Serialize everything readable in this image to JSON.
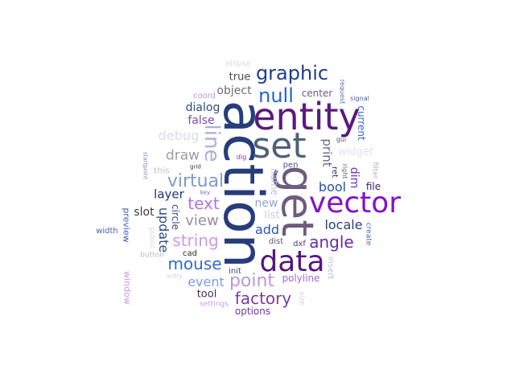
{
  "words": [
    {
      "text": "action",
      "color": "#263d7a"
    },
    {
      "text": "get",
      "color": "#6e5b7d"
    },
    {
      "text": "entity",
      "color": "#5a1a7e"
    },
    {
      "text": "vector",
      "color": "#8412c7"
    },
    {
      "text": "set",
      "color": "#4f6177"
    },
    {
      "text": "data",
      "color": "#56157f"
    },
    {
      "text": "graphic",
      "color": "#1f3c8f"
    },
    {
      "text": "null",
      "color": "#2463d6"
    },
    {
      "text": "line",
      "color": "#a7b1d4"
    },
    {
      "text": "point",
      "color": "#b89ad3"
    },
    {
      "text": "virtual",
      "color": "#7f9bc8"
    },
    {
      "text": "angle",
      "color": "#6a2aa6"
    },
    {
      "text": "factory",
      "color": "#7c3aa2"
    },
    {
      "text": "string",
      "color": "#c79be8"
    },
    {
      "text": "mouse",
      "color": "#2e6bd2"
    },
    {
      "text": "text",
      "color": "#b472e8"
    },
    {
      "text": "view",
      "color": "#9a8aa6"
    },
    {
      "text": "draw",
      "color": "#9c9ca8"
    },
    {
      "text": "debug",
      "color": "#dadde6"
    },
    {
      "text": "event",
      "color": "#7c9ce8"
    },
    {
      "text": "locale",
      "color": "#2a3f7a"
    },
    {
      "text": "bool",
      "color": "#2751a8"
    },
    {
      "text": "add",
      "color": "#2d58b6"
    },
    {
      "text": "print",
      "color": "#5c6a8e"
    },
    {
      "text": "dim",
      "color": "#7a2ec1"
    },
    {
      "text": "layer",
      "color": "#213566"
    },
    {
      "text": "slot",
      "color": "#3b3b4a"
    },
    {
      "text": "update",
      "color": "#2d4c86"
    },
    {
      "text": "dialog",
      "color": "#2f4b7a"
    },
    {
      "text": "false",
      "color": "#7d48ad"
    },
    {
      "text": "object",
      "color": "#6b6b7e"
    },
    {
      "text": "true",
      "color": "#4a4a52"
    },
    {
      "text": "center",
      "color": "#6b5b8a"
    },
    {
      "text": "new",
      "color": "#8fa6d6"
    },
    {
      "text": "list",
      "color": "#c8cde0"
    },
    {
      "text": "name",
      "color": "#b5bfe3"
    },
    {
      "text": "circle",
      "color": "#3c4a7a"
    },
    {
      "text": "file",
      "color": "#3a1c6b"
    },
    {
      "text": "widget",
      "color": "#e0e3f0"
    },
    {
      "text": "current",
      "color": "#3964c6"
    },
    {
      "text": "tool",
      "color": "#4b2a5e"
    },
    {
      "text": "options",
      "color": "#6b3a9e"
    },
    {
      "text": "polyline",
      "color": "#a36bd4"
    },
    {
      "text": "window",
      "color": "#c19be8"
    },
    {
      "text": "preview",
      "color": "#4060b6"
    },
    {
      "text": "this",
      "color": "#bfc4d2"
    },
    {
      "text": "coord",
      "color": "#b79be0"
    },
    {
      "text": "ellipse",
      "color": "#d7dae6"
    },
    {
      "text": "request",
      "color": "#5a6aa4"
    },
    {
      "text": "signal",
      "color": "#4a5c96"
    },
    {
      "text": "gui",
      "color": "#555a66"
    },
    {
      "text": "pen",
      "color": "#5d4a96"
    },
    {
      "text": "ret",
      "color": "#3e2c6b"
    },
    {
      "text": "right",
      "color": "#6a6a78"
    },
    {
      "text": "filter",
      "color": "#a9aec0"
    },
    {
      "text": "create",
      "color": "#4a6ab0"
    },
    {
      "text": "dist",
      "color": "#5a5a66"
    },
    {
      "text": "dxf",
      "color": "#5a3a8e"
    },
    {
      "text": "insert",
      "color": "#b6c2e6"
    },
    {
      "text": "size",
      "color": "#d0d4e0"
    },
    {
      "text": "init",
      "color": "#3e4a6a"
    },
    {
      "text": "cad",
      "color": "#2a2a34"
    },
    {
      "text": "button",
      "color": "#b8bac6"
    },
    {
      "text": "entry",
      "color": "#c4cdf0"
    },
    {
      "text": "settings",
      "color": "#c79be8"
    },
    {
      "text": "public",
      "color": "#d4d6de"
    },
    {
      "text": "key",
      "color": "#7b5aa0"
    },
    {
      "text": "grid",
      "color": "#3a3a44"
    },
    {
      "text": "startpoint",
      "color": "#7a8aa6"
    },
    {
      "text": "width",
      "color": "#4766b0"
    },
    {
      "text": "dlg",
      "color": "#7d3ab0"
    }
  ]
}
